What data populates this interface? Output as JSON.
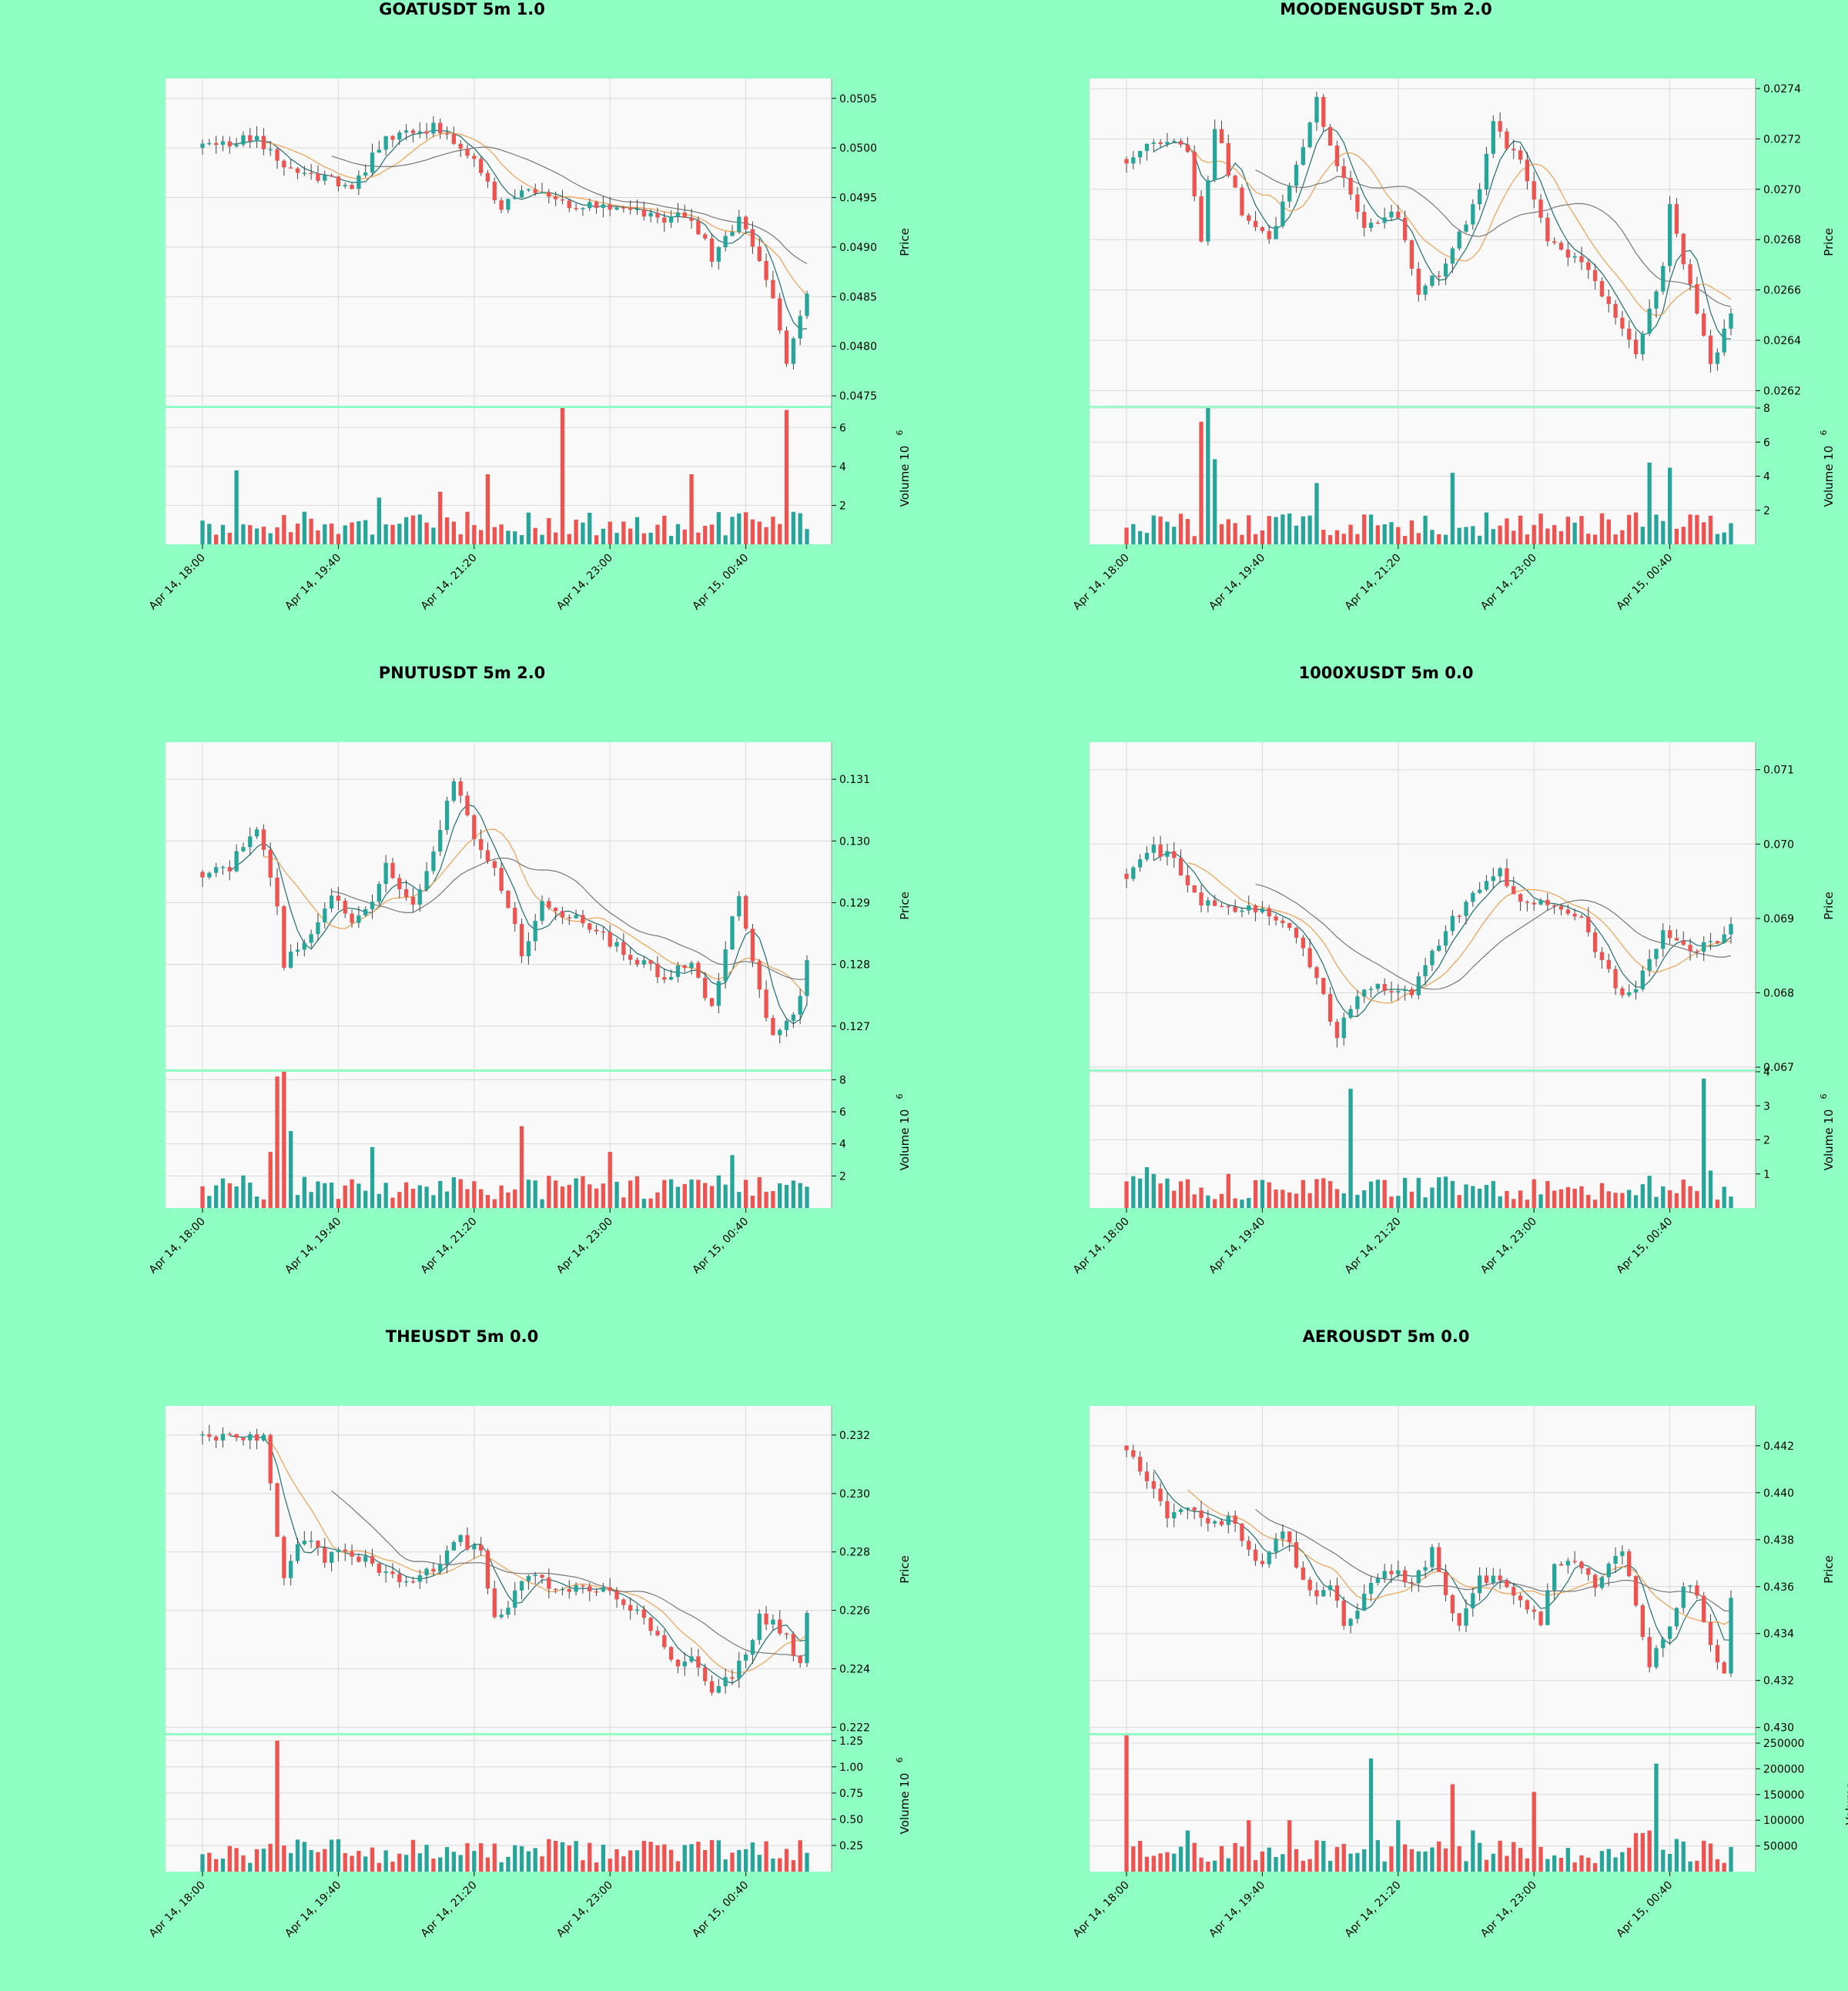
{
  "colors": {
    "background": "#90ffc4",
    "plot_bg": "#f9f9f9",
    "up": "#26a69a",
    "down": "#ef5350",
    "grid": "#d9d9d9",
    "ma_short": "#1f6e6e",
    "ma_mid": "#f0a050",
    "ma_long": "#777777"
  },
  "chart_data": [
    {
      "type": "candlestick",
      "title": "GOATUSDT 5m 1.0",
      "ylabel": "Price",
      "vol_label": "Volume",
      "vol_exp": "1e6",
      "x_ticks": [
        "Apr 14, 18:00",
        "Apr 14, 19:40",
        "Apr 14, 21:20",
        "Apr 14, 23:00",
        "Apr 15, 00:40"
      ],
      "x_tick_index": [
        0,
        20,
        40,
        60,
        80
      ],
      "n_candles": 90,
      "price_ylim": [
        0.0474,
        0.0507
      ],
      "price_ticks": [
        "0.0475",
        "0.0480",
        "0.0485",
        "0.0490",
        "0.0495",
        "0.0500",
        "0.0505"
      ],
      "vol_ylim": [
        0,
        7
      ],
      "vol_ticks": [
        "2",
        "4",
        "6"
      ],
      "anchors": [
        [
          0,
          0.05
        ],
        [
          8,
          0.0501
        ],
        [
          12,
          0.0498
        ],
        [
          17,
          0.0497
        ],
        [
          22,
          0.0496
        ],
        [
          27,
          0.0501
        ],
        [
          30,
          0.0502
        ],
        [
          35,
          0.0502
        ],
        [
          40,
          0.0499
        ],
        [
          44,
          0.0494
        ],
        [
          48,
          0.0496
        ],
        [
          55,
          0.0494
        ],
        [
          62,
          0.0494
        ],
        [
          66,
          0.0493
        ],
        [
          72,
          0.0493
        ],
        [
          75,
          0.0489
        ],
        [
          79,
          0.0493
        ],
        [
          84,
          0.0485
        ],
        [
          86,
          0.0478
        ],
        [
          89,
          0.0485
        ]
      ],
      "vol_peaks": [
        [
          5,
          3.8
        ],
        [
          26,
          2.4
        ],
        [
          35,
          2.7
        ],
        [
          42,
          3.6
        ],
        [
          53,
          7.0
        ],
        [
          72,
          3.6
        ],
        [
          86,
          6.9
        ]
      ]
    },
    {
      "type": "candlestick",
      "title": "MOODENGUSDT 5m 2.0",
      "ylabel": "Price",
      "vol_label": "Volume",
      "vol_exp": "1e6",
      "x_ticks": [
        "Apr 14, 18:00",
        "Apr 14, 19:40",
        "Apr 14, 21:20",
        "Apr 14, 23:00",
        "Apr 15, 00:40"
      ],
      "x_tick_index": [
        0,
        20,
        40,
        60,
        80
      ],
      "n_candles": 90,
      "price_ylim": [
        0.02614,
        0.02744
      ],
      "price_ticks": [
        "0.0262",
        "0.0264",
        "0.0266",
        "0.0268",
        "0.0270",
        "0.0272",
        "0.0274"
      ],
      "vol_ylim": [
        0,
        8
      ],
      "vol_ticks": [
        "2",
        "4",
        "6",
        "8"
      ],
      "anchors": [
        [
          0,
          0.02712
        ],
        [
          4,
          0.0272
        ],
        [
          9,
          0.02716
        ],
        [
          11,
          0.0268
        ],
        [
          13,
          0.02725
        ],
        [
          17,
          0.0269
        ],
        [
          21,
          0.0268
        ],
        [
          25,
          0.0271
        ],
        [
          28,
          0.02735
        ],
        [
          31,
          0.0271
        ],
        [
          35,
          0.02685
        ],
        [
          40,
          0.0269
        ],
        [
          43,
          0.0266
        ],
        [
          47,
          0.0267
        ],
        [
          52,
          0.027
        ],
        [
          54,
          0.02725
        ],
        [
          58,
          0.0271
        ],
        [
          62,
          0.0268
        ],
        [
          67,
          0.0267
        ],
        [
          72,
          0.0265
        ],
        [
          75,
          0.02635
        ],
        [
          79,
          0.0267
        ],
        [
          80,
          0.02695
        ],
        [
          84,
          0.0265
        ],
        [
          86,
          0.0263
        ],
        [
          89,
          0.02652
        ]
      ],
      "vol_peaks": [
        [
          11,
          7.2
        ],
        [
          12,
          8.0
        ],
        [
          13,
          5.0
        ],
        [
          28,
          3.6
        ],
        [
          48,
          4.2
        ],
        [
          77,
          4.8
        ],
        [
          80,
          4.5
        ]
      ]
    },
    {
      "type": "candlestick",
      "title": "PNUTUSDT 5m 2.0",
      "ylabel": "Price",
      "vol_label": "Volume",
      "vol_exp": "1e6",
      "x_ticks": [
        "Apr 14, 18:00",
        "Apr 14, 19:40",
        "Apr 14, 21:20",
        "Apr 14, 23:00",
        "Apr 15, 00:40"
      ],
      "x_tick_index": [
        0,
        20,
        40,
        60,
        80
      ],
      "n_candles": 90,
      "price_ylim": [
        0.1263,
        0.1316
      ],
      "price_ticks": [
        "0.127",
        "0.128",
        "0.129",
        "0.130",
        "0.131"
      ],
      "vol_ylim": [
        0,
        8.5
      ],
      "vol_ticks": [
        "2",
        "4",
        "6",
        "8"
      ],
      "anchors": [
        [
          0,
          0.1295
        ],
        [
          4,
          0.1296
        ],
        [
          8,
          0.1302
        ],
        [
          11,
          0.129
        ],
        [
          12,
          0.128
        ],
        [
          16,
          0.1285
        ],
        [
          19,
          0.1292
        ],
        [
          22,
          0.1287
        ],
        [
          25,
          0.129
        ],
        [
          27,
          0.1296
        ],
        [
          31,
          0.129
        ],
        [
          34,
          0.1298
        ],
        [
          37,
          0.131
        ],
        [
          40,
          0.13
        ],
        [
          43,
          0.1295
        ],
        [
          45,
          0.129
        ],
        [
          47,
          0.1282
        ],
        [
          50,
          0.129
        ],
        [
          56,
          0.1287
        ],
        [
          62,
          0.1282
        ],
        [
          68,
          0.1278
        ],
        [
          72,
          0.128
        ],
        [
          75,
          0.1273
        ],
        [
          78,
          0.1287
        ],
        [
          79,
          0.1292
        ],
        [
          82,
          0.1276
        ],
        [
          84,
          0.1268
        ],
        [
          87,
          0.1271
        ],
        [
          89,
          0.128
        ]
      ],
      "vol_peaks": [
        [
          10,
          3.5
        ],
        [
          11,
          8.2
        ],
        [
          12,
          8.5
        ],
        [
          13,
          4.8
        ],
        [
          25,
          3.8
        ],
        [
          47,
          5.1
        ],
        [
          60,
          3.5
        ],
        [
          78,
          3.3
        ]
      ]
    },
    {
      "type": "candlestick",
      "title": "1000XUSDT 5m 0.0",
      "ylabel": "Price",
      "vol_label": "Volume",
      "vol_exp": "1e6",
      "x_ticks": [
        "Apr 14, 18:00",
        "Apr 14, 19:40",
        "Apr 14, 21:20",
        "Apr 14, 23:00",
        "Apr 15, 00:40"
      ],
      "x_tick_index": [
        0,
        20,
        40,
        60,
        80
      ],
      "n_candles": 90,
      "price_ylim": [
        0.06697,
        0.07137
      ],
      "price_ticks": [
        "0.067",
        "0.068",
        "0.069",
        "0.070",
        "0.071"
      ],
      "vol_ylim": [
        0,
        4
      ],
      "vol_ticks": [
        "1",
        "2",
        "3",
        "4"
      ],
      "anchors": [
        [
          0,
          0.0696
        ],
        [
          4,
          0.06995
        ],
        [
          7,
          0.0698
        ],
        [
          11,
          0.0692
        ],
        [
          15,
          0.0691
        ],
        [
          20,
          0.0691
        ],
        [
          25,
          0.0688
        ],
        [
          28,
          0.0682
        ],
        [
          31,
          0.0674
        ],
        [
          34,
          0.068
        ],
        [
          38,
          0.0681
        ],
        [
          42,
          0.068
        ],
        [
          45,
          0.0685
        ],
        [
          48,
          0.069
        ],
        [
          52,
          0.0694
        ],
        [
          55,
          0.0696
        ],
        [
          58,
          0.0692
        ],
        [
          62,
          0.0692
        ],
        [
          67,
          0.069
        ],
        [
          70,
          0.0684
        ],
        [
          73,
          0.068
        ],
        [
          75,
          0.0681
        ],
        [
          79,
          0.0688
        ],
        [
          83,
          0.0686
        ],
        [
          87,
          0.06865
        ],
        [
          89,
          0.0689
        ]
      ],
      "vol_peaks": [
        [
          3,
          1.2
        ],
        [
          4,
          1.0
        ],
        [
          15,
          1.0
        ],
        [
          33,
          3.5
        ],
        [
          46,
          0.9
        ],
        [
          85,
          3.8
        ],
        [
          86,
          1.1
        ]
      ]
    },
    {
      "type": "candlestick",
      "title": "THEUSDT 5m 0.0",
      "ylabel": "Price",
      "vol_label": "Volume",
      "vol_exp": "1e6",
      "x_ticks": [
        "Apr 14, 18:00",
        "Apr 14, 19:40",
        "Apr 14, 21:20",
        "Apr 14, 23:00",
        "Apr 15, 00:40"
      ],
      "x_tick_index": [
        0,
        20,
        40,
        60,
        80
      ],
      "n_candles": 90,
      "price_ylim": [
        0.2218,
        0.233
      ],
      "price_ticks": [
        "0.222",
        "0.224",
        "0.226",
        "0.228",
        "0.230",
        "0.232"
      ],
      "vol_ylim": [
        0,
        1.3
      ],
      "vol_ticks": [
        "0.25",
        "0.50",
        "0.75",
        "1.00",
        "1.25"
      ],
      "anchors": [
        [
          0,
          0.232
        ],
        [
          5,
          0.2318
        ],
        [
          9,
          0.232
        ],
        [
          11,
          0.2285
        ],
        [
          12,
          0.2273
        ],
        [
          15,
          0.2285
        ],
        [
          18,
          0.2278
        ],
        [
          22,
          0.228
        ],
        [
          26,
          0.2274
        ],
        [
          30,
          0.227
        ],
        [
          34,
          0.2275
        ],
        [
          38,
          0.2284
        ],
        [
          41,
          0.228
        ],
        [
          43,
          0.2258
        ],
        [
          45,
          0.2262
        ],
        [
          48,
          0.2272
        ],
        [
          52,
          0.2268
        ],
        [
          56,
          0.2268
        ],
        [
          60,
          0.2266
        ],
        [
          64,
          0.226
        ],
        [
          68,
          0.2248
        ],
        [
          70,
          0.224
        ],
        [
          72,
          0.2245
        ],
        [
          75,
          0.2233
        ],
        [
          78,
          0.2237
        ],
        [
          80,
          0.2245
        ],
        [
          82,
          0.2258
        ],
        [
          86,
          0.2252
        ],
        [
          88,
          0.224
        ],
        [
          89,
          0.226
        ]
      ],
      "vol_peaks": [
        [
          2,
          0.12
        ],
        [
          11,
          1.25
        ],
        [
          12,
          0.25
        ],
        [
          44,
          0.09
        ],
        [
          70,
          0.1
        ],
        [
          87,
          0.11
        ]
      ]
    },
    {
      "type": "candlestick",
      "title": "AEROUSDT 5m 0.0",
      "ylabel": "Price",
      "vol_label": "Volume",
      "x_ticks": [
        "Apr 14, 18:00",
        "Apr 14, 19:40",
        "Apr 14, 21:20",
        "Apr 14, 23:00",
        "Apr 15, 00:40"
      ],
      "x_tick_index": [
        0,
        20,
        40,
        60,
        80
      ],
      "n_candles": 90,
      "price_ylim": [
        0.42976,
        0.4437
      ],
      "price_ticks": [
        "0.430",
        "0.432",
        "0.434",
        "0.436",
        "0.438",
        "0.440",
        "0.442"
      ],
      "vol_ylim": [
        0,
        265000
      ],
      "vol_ticks": [
        "50000",
        "100000",
        "150000",
        "200000",
        "250000"
      ],
      "anchors": [
        [
          0,
          0.442
        ],
        [
          3,
          0.4405
        ],
        [
          6,
          0.439
        ],
        [
          9,
          0.4395
        ],
        [
          12,
          0.4385
        ],
        [
          15,
          0.439
        ],
        [
          18,
          0.4375
        ],
        [
          20,
          0.437
        ],
        [
          23,
          0.4385
        ],
        [
          25,
          0.437
        ],
        [
          28,
          0.4355
        ],
        [
          30,
          0.4362
        ],
        [
          32,
          0.4345
        ],
        [
          35,
          0.4355
        ],
        [
          38,
          0.4368
        ],
        [
          42,
          0.4362
        ],
        [
          45,
          0.4375
        ],
        [
          47,
          0.4355
        ],
        [
          49,
          0.4345
        ],
        [
          52,
          0.4365
        ],
        [
          56,
          0.436
        ],
        [
          59,
          0.435
        ],
        [
          61,
          0.4345
        ],
        [
          63,
          0.4372
        ],
        [
          66,
          0.437
        ],
        [
          69,
          0.436
        ],
        [
          73,
          0.4375
        ],
        [
          75,
          0.435
        ],
        [
          77,
          0.4325
        ],
        [
          80,
          0.4345
        ],
        [
          82,
          0.436
        ],
        [
          84,
          0.4358
        ],
        [
          86,
          0.4335
        ],
        [
          88,
          0.4325
        ],
        [
          89,
          0.4355
        ]
      ],
      "vol_peaks": [
        [
          0,
          265000
        ],
        [
          9,
          80000
        ],
        [
          18,
          100000
        ],
        [
          24,
          100000
        ],
        [
          36,
          220000
        ],
        [
          40,
          100000
        ],
        [
          48,
          170000
        ],
        [
          51,
          80000
        ],
        [
          60,
          155000
        ],
        [
          75,
          75000
        ],
        [
          76,
          75000
        ],
        [
          77,
          80000
        ],
        [
          78,
          210000
        ],
        [
          85,
          60000
        ]
      ]
    }
  ]
}
